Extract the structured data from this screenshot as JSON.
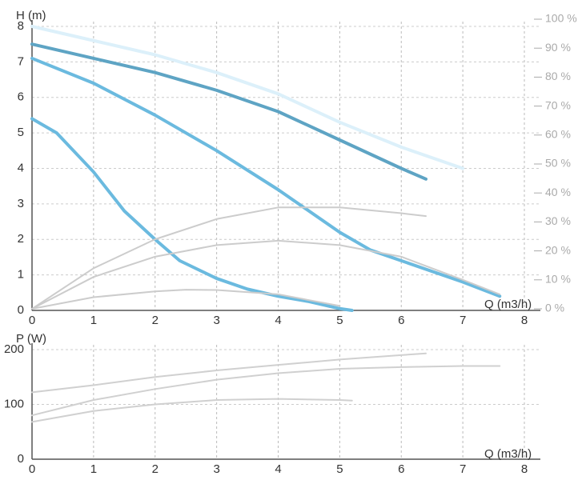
{
  "chart_data": [
    {
      "type": "line",
      "y_label": "H (m)",
      "x_label": "Q (m3/h)",
      "xlim": [
        0,
        8
      ],
      "xticks": [
        0,
        1,
        2,
        3,
        4,
        5,
        6,
        7,
        8
      ],
      "ylim": [
        0,
        8
      ],
      "yticks": [
        0,
        1,
        2,
        3,
        4,
        5,
        6,
        7,
        8
      ],
      "y2lim": [
        0,
        100
      ],
      "y2ticks": [
        {
          "value": 0,
          "label": "0 %"
        },
        {
          "value": 10,
          "label": "10 %"
        },
        {
          "value": 20,
          "label": "20 %"
        },
        {
          "value": 30,
          "label": "30 %"
        },
        {
          "value": 40,
          "label": "40 %"
        },
        {
          "value": 50,
          "label": "50 %"
        },
        {
          "value": 60,
          "label": "60 %"
        },
        {
          "value": 70,
          "label": "70 %"
        },
        {
          "value": 80,
          "label": "80 %"
        },
        {
          "value": 90,
          "label": "90 %"
        },
        {
          "value": 100,
          "label": "100 %"
        }
      ],
      "grid": true,
      "series": [
        {
          "color": "#dcf0fa",
          "x": [
            0,
            1,
            2,
            3,
            4,
            5,
            6,
            7
          ],
          "values": [
            8,
            7.6,
            7.2,
            6.7,
            6.1,
            5.3,
            4.6,
            4.0
          ]
        },
        {
          "color": "#5ea4c4",
          "x": [
            0,
            1,
            2,
            3,
            4,
            5,
            6,
            6.4
          ],
          "values": [
            7.5,
            7.1,
            6.7,
            6.2,
            5.6,
            4.8,
            4.0,
            3.7
          ]
        },
        {
          "color": "#6bbadf",
          "x": [
            0,
            1,
            2,
            3,
            4,
            5,
            5.5,
            6,
            7,
            7.6
          ],
          "values": [
            7.1,
            6.4,
            5.5,
            4.5,
            3.4,
            2.2,
            1.7,
            1.4,
            0.8,
            0.4
          ]
        },
        {
          "color": "#6bbadf",
          "x": [
            0,
            0.4,
            1,
            1.5,
            2,
            2.4,
            3,
            3.5,
            4,
            4.5,
            5,
            5.2
          ],
          "values": [
            5.4,
            5.0,
            3.9,
            2.8,
            2.0,
            1.4,
            0.9,
            0.6,
            0.4,
            0.25,
            0.05,
            0
          ]
        },
        {
          "color": "#cccccc",
          "axis": "y2",
          "x": [
            0,
            1,
            2,
            3,
            4,
            5,
            6,
            6.4
          ],
          "values": [
            0,
            14,
            24,
            31,
            35,
            35,
            33,
            32
          ]
        },
        {
          "color": "#cccccc",
          "axis": "y2",
          "x": [
            0,
            1,
            2,
            3,
            4,
            5,
            6,
            7,
            7.6
          ],
          "values": [
            0,
            11,
            18,
            22,
            23.5,
            22,
            18,
            10,
            5
          ]
        },
        {
          "color": "#cccccc",
          "axis": "y2",
          "x": [
            0,
            1,
            2,
            2.5,
            3,
            4,
            5
          ],
          "values": [
            0,
            4,
            6,
            6.6,
            6.5,
            5,
            1
          ]
        }
      ]
    },
    {
      "type": "line",
      "y_label": "P (W)",
      "x_label": "Q (m3/h)",
      "xlim": [
        0,
        8
      ],
      "xticks": [
        0,
        1,
        2,
        3,
        4,
        5,
        6,
        7,
        8
      ],
      "ylim": [
        0,
        200
      ],
      "yticks": [
        0,
        100,
        200
      ],
      "grid": true,
      "series": [
        {
          "color": "#d0d0d0",
          "x": [
            0,
            1,
            2,
            3,
            4,
            5,
            6,
            6.4
          ],
          "values": [
            122,
            135,
            150,
            162,
            172,
            182,
            190,
            193
          ]
        },
        {
          "color": "#d0d0d0",
          "x": [
            0,
            1,
            2,
            3,
            4,
            5,
            6,
            7,
            7.6
          ],
          "values": [
            80,
            108,
            128,
            145,
            157,
            165,
            168,
            170,
            170
          ]
        },
        {
          "color": "#d0d0d0",
          "x": [
            0,
            1,
            2,
            3,
            4,
            5,
            5.2
          ],
          "values": [
            68,
            88,
            100,
            108,
            110,
            108,
            107
          ]
        }
      ]
    }
  ]
}
